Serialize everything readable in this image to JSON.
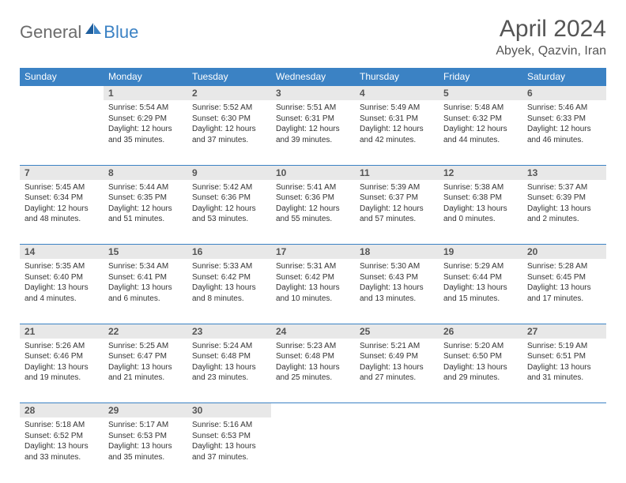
{
  "logo": {
    "part1": "General",
    "part2": "Blue"
  },
  "title": "April 2024",
  "location": "Abyek, Qazvin, Iran",
  "colors": {
    "header_bg": "#3b82c4",
    "header_text": "#ffffff",
    "daynum_bg": "#e8e8e8",
    "border": "#3b82c4",
    "logo_gray": "#6b6b6b",
    "logo_blue": "#3b82c4",
    "text": "#333333",
    "title_color": "#555555"
  },
  "weekdays": [
    "Sunday",
    "Monday",
    "Tuesday",
    "Wednesday",
    "Thursday",
    "Friday",
    "Saturday"
  ],
  "weeks": [
    [
      null,
      {
        "n": "1",
        "sr": "Sunrise: 5:54 AM",
        "ss": "Sunset: 6:29 PM",
        "dl": "Daylight: 12 hours and 35 minutes."
      },
      {
        "n": "2",
        "sr": "Sunrise: 5:52 AM",
        "ss": "Sunset: 6:30 PM",
        "dl": "Daylight: 12 hours and 37 minutes."
      },
      {
        "n": "3",
        "sr": "Sunrise: 5:51 AM",
        "ss": "Sunset: 6:31 PM",
        "dl": "Daylight: 12 hours and 39 minutes."
      },
      {
        "n": "4",
        "sr": "Sunrise: 5:49 AM",
        "ss": "Sunset: 6:31 PM",
        "dl": "Daylight: 12 hours and 42 minutes."
      },
      {
        "n": "5",
        "sr": "Sunrise: 5:48 AM",
        "ss": "Sunset: 6:32 PM",
        "dl": "Daylight: 12 hours and 44 minutes."
      },
      {
        "n": "6",
        "sr": "Sunrise: 5:46 AM",
        "ss": "Sunset: 6:33 PM",
        "dl": "Daylight: 12 hours and 46 minutes."
      }
    ],
    [
      {
        "n": "7",
        "sr": "Sunrise: 5:45 AM",
        "ss": "Sunset: 6:34 PM",
        "dl": "Daylight: 12 hours and 48 minutes."
      },
      {
        "n": "8",
        "sr": "Sunrise: 5:44 AM",
        "ss": "Sunset: 6:35 PM",
        "dl": "Daylight: 12 hours and 51 minutes."
      },
      {
        "n": "9",
        "sr": "Sunrise: 5:42 AM",
        "ss": "Sunset: 6:36 PM",
        "dl": "Daylight: 12 hours and 53 minutes."
      },
      {
        "n": "10",
        "sr": "Sunrise: 5:41 AM",
        "ss": "Sunset: 6:36 PM",
        "dl": "Daylight: 12 hours and 55 minutes."
      },
      {
        "n": "11",
        "sr": "Sunrise: 5:39 AM",
        "ss": "Sunset: 6:37 PM",
        "dl": "Daylight: 12 hours and 57 minutes."
      },
      {
        "n": "12",
        "sr": "Sunrise: 5:38 AM",
        "ss": "Sunset: 6:38 PM",
        "dl": "Daylight: 13 hours and 0 minutes."
      },
      {
        "n": "13",
        "sr": "Sunrise: 5:37 AM",
        "ss": "Sunset: 6:39 PM",
        "dl": "Daylight: 13 hours and 2 minutes."
      }
    ],
    [
      {
        "n": "14",
        "sr": "Sunrise: 5:35 AM",
        "ss": "Sunset: 6:40 PM",
        "dl": "Daylight: 13 hours and 4 minutes."
      },
      {
        "n": "15",
        "sr": "Sunrise: 5:34 AM",
        "ss": "Sunset: 6:41 PM",
        "dl": "Daylight: 13 hours and 6 minutes."
      },
      {
        "n": "16",
        "sr": "Sunrise: 5:33 AM",
        "ss": "Sunset: 6:42 PM",
        "dl": "Daylight: 13 hours and 8 minutes."
      },
      {
        "n": "17",
        "sr": "Sunrise: 5:31 AM",
        "ss": "Sunset: 6:42 PM",
        "dl": "Daylight: 13 hours and 10 minutes."
      },
      {
        "n": "18",
        "sr": "Sunrise: 5:30 AM",
        "ss": "Sunset: 6:43 PM",
        "dl": "Daylight: 13 hours and 13 minutes."
      },
      {
        "n": "19",
        "sr": "Sunrise: 5:29 AM",
        "ss": "Sunset: 6:44 PM",
        "dl": "Daylight: 13 hours and 15 minutes."
      },
      {
        "n": "20",
        "sr": "Sunrise: 5:28 AM",
        "ss": "Sunset: 6:45 PM",
        "dl": "Daylight: 13 hours and 17 minutes."
      }
    ],
    [
      {
        "n": "21",
        "sr": "Sunrise: 5:26 AM",
        "ss": "Sunset: 6:46 PM",
        "dl": "Daylight: 13 hours and 19 minutes."
      },
      {
        "n": "22",
        "sr": "Sunrise: 5:25 AM",
        "ss": "Sunset: 6:47 PM",
        "dl": "Daylight: 13 hours and 21 minutes."
      },
      {
        "n": "23",
        "sr": "Sunrise: 5:24 AM",
        "ss": "Sunset: 6:48 PM",
        "dl": "Daylight: 13 hours and 23 minutes."
      },
      {
        "n": "24",
        "sr": "Sunrise: 5:23 AM",
        "ss": "Sunset: 6:48 PM",
        "dl": "Daylight: 13 hours and 25 minutes."
      },
      {
        "n": "25",
        "sr": "Sunrise: 5:21 AM",
        "ss": "Sunset: 6:49 PM",
        "dl": "Daylight: 13 hours and 27 minutes."
      },
      {
        "n": "26",
        "sr": "Sunrise: 5:20 AM",
        "ss": "Sunset: 6:50 PM",
        "dl": "Daylight: 13 hours and 29 minutes."
      },
      {
        "n": "27",
        "sr": "Sunrise: 5:19 AM",
        "ss": "Sunset: 6:51 PM",
        "dl": "Daylight: 13 hours and 31 minutes."
      }
    ],
    [
      {
        "n": "28",
        "sr": "Sunrise: 5:18 AM",
        "ss": "Sunset: 6:52 PM",
        "dl": "Daylight: 13 hours and 33 minutes."
      },
      {
        "n": "29",
        "sr": "Sunrise: 5:17 AM",
        "ss": "Sunset: 6:53 PM",
        "dl": "Daylight: 13 hours and 35 minutes."
      },
      {
        "n": "30",
        "sr": "Sunrise: 5:16 AM",
        "ss": "Sunset: 6:53 PM",
        "dl": "Daylight: 13 hours and 37 minutes."
      },
      null,
      null,
      null,
      null
    ]
  ]
}
